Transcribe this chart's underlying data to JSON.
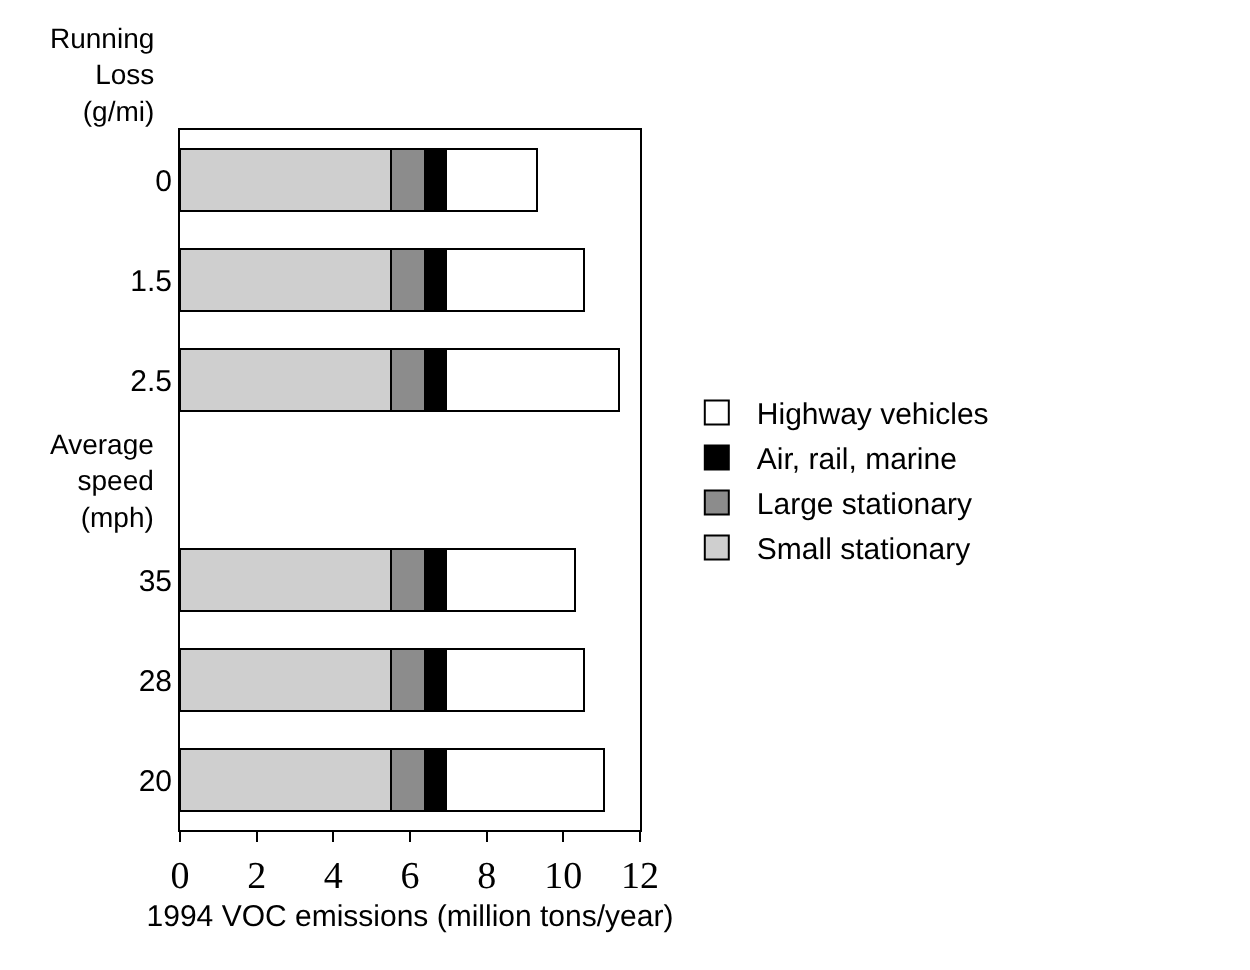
{
  "chart_data": {
    "type": "bar",
    "orientation": "horizontal",
    "stacked": true,
    "xlabel": "1994 VOC emissions (million tons/year)",
    "categories": [
      "0",
      "1.5",
      "2.5",
      null,
      "35",
      "28",
      "20"
    ],
    "series": [
      {
        "name": "Small stationary",
        "color": "#cfcfcf",
        "values": [
          5.5,
          5.5,
          5.5,
          null,
          5.5,
          5.5,
          5.5
        ]
      },
      {
        "name": "Large stationary",
        "color": "#8c8c8c",
        "values": [
          0.9,
          0.9,
          0.9,
          null,
          0.9,
          0.9,
          0.9
        ]
      },
      {
        "name": "Air, rail, marine",
        "color": "#000000",
        "values": [
          0.55,
          0.55,
          0.55,
          null,
          0.55,
          0.55,
          0.55
        ]
      },
      {
        "name": "Highway vehicles",
        "color": "#ffffff",
        "values": [
          2.35,
          3.6,
          4.5,
          null,
          3.35,
          3.6,
          4.1
        ]
      }
    ],
    "annotations": [
      "Running Loss (g/mi)",
      "Average speed (mph)"
    ],
    "xlim": [
      0,
      12
    ],
    "xticks": [
      0,
      2,
      4,
      6,
      8,
      10,
      12
    ],
    "legend": "right"
  }
}
